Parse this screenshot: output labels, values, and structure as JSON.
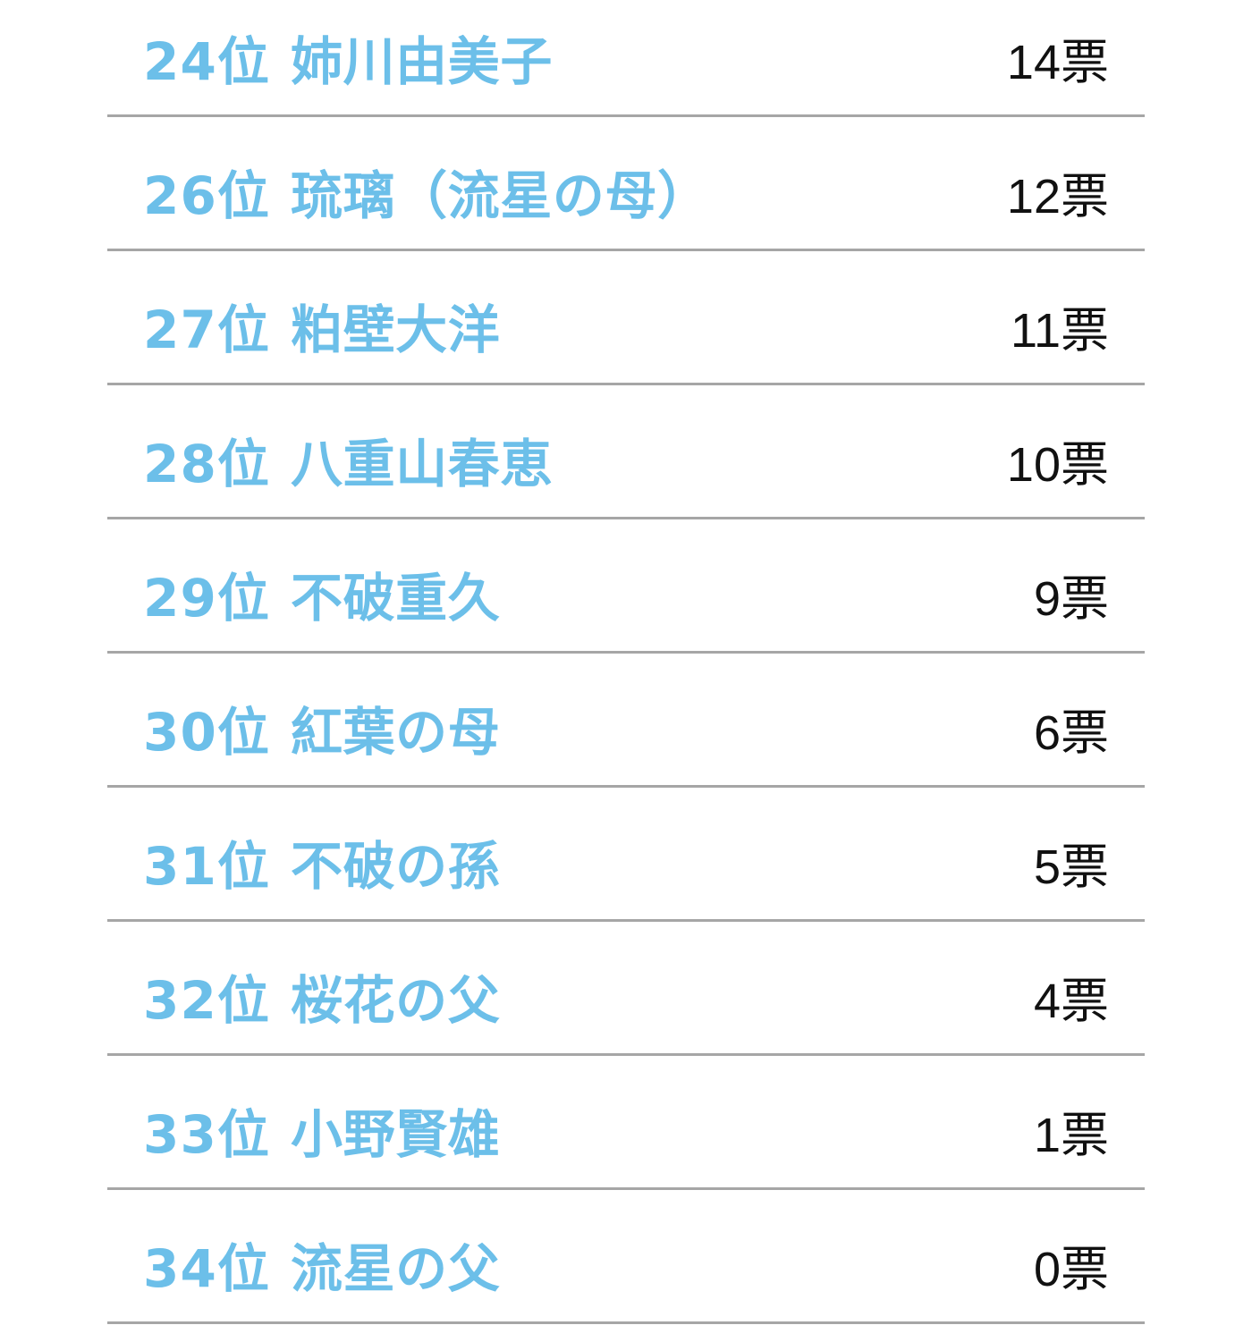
{
  "ranking": {
    "rows": [
      {
        "rank": "24位",
        "name": "姉川由美子",
        "votes": "14票"
      },
      {
        "rank": "26位",
        "name": "琉璃（流星の母）",
        "votes": "12票"
      },
      {
        "rank": "27位",
        "name": "粕壁大洋",
        "votes": "11票"
      },
      {
        "rank": "28位",
        "name": "八重山春恵",
        "votes": "10票"
      },
      {
        "rank": "29位",
        "name": "不破重久",
        "votes": "9票"
      },
      {
        "rank": "30位",
        "name": "紅葉の母",
        "votes": "6票"
      },
      {
        "rank": "31位",
        "name": "不破の孫",
        "votes": "5票"
      },
      {
        "rank": "32位",
        "name": "桜花の父",
        "votes": "4票"
      },
      {
        "rank": "33位",
        "name": "小野賢雄",
        "votes": "1票"
      },
      {
        "rank": "34位",
        "name": "流星の父",
        "votes": "0票"
      }
    ],
    "colors": {
      "accent_blue": "#6cbfe9",
      "vote_text": "#111111",
      "divider": "#a6a6a6"
    }
  }
}
